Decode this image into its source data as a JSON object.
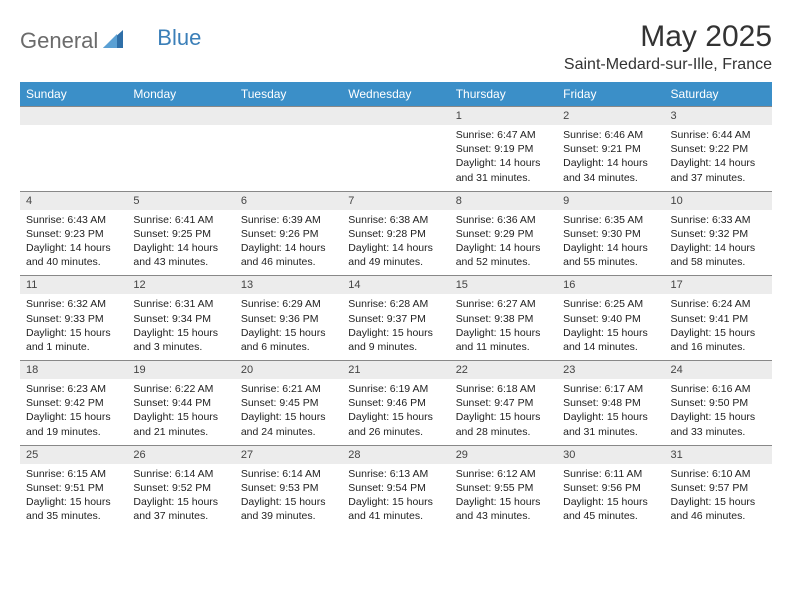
{
  "brand": {
    "part1": "General",
    "part2": "Blue"
  },
  "title": "May 2025",
  "location": "Saint-Medard-sur-Ille, France",
  "colors": {
    "header_bg": "#3b8fc8",
    "daynum_bg": "#ececec",
    "text": "#222222"
  },
  "day_labels": [
    "Sunday",
    "Monday",
    "Tuesday",
    "Wednesday",
    "Thursday",
    "Friday",
    "Saturday"
  ],
  "weeks": [
    [
      null,
      null,
      null,
      null,
      {
        "n": "1",
        "sunrise": "Sunrise: 6:47 AM",
        "sunset": "Sunset: 9:19 PM",
        "daylight": "Daylight: 14 hours and 31 minutes."
      },
      {
        "n": "2",
        "sunrise": "Sunrise: 6:46 AM",
        "sunset": "Sunset: 9:21 PM",
        "daylight": "Daylight: 14 hours and 34 minutes."
      },
      {
        "n": "3",
        "sunrise": "Sunrise: 6:44 AM",
        "sunset": "Sunset: 9:22 PM",
        "daylight": "Daylight: 14 hours and 37 minutes."
      }
    ],
    [
      {
        "n": "4",
        "sunrise": "Sunrise: 6:43 AM",
        "sunset": "Sunset: 9:23 PM",
        "daylight": "Daylight: 14 hours and 40 minutes."
      },
      {
        "n": "5",
        "sunrise": "Sunrise: 6:41 AM",
        "sunset": "Sunset: 9:25 PM",
        "daylight": "Daylight: 14 hours and 43 minutes."
      },
      {
        "n": "6",
        "sunrise": "Sunrise: 6:39 AM",
        "sunset": "Sunset: 9:26 PM",
        "daylight": "Daylight: 14 hours and 46 minutes."
      },
      {
        "n": "7",
        "sunrise": "Sunrise: 6:38 AM",
        "sunset": "Sunset: 9:28 PM",
        "daylight": "Daylight: 14 hours and 49 minutes."
      },
      {
        "n": "8",
        "sunrise": "Sunrise: 6:36 AM",
        "sunset": "Sunset: 9:29 PM",
        "daylight": "Daylight: 14 hours and 52 minutes."
      },
      {
        "n": "9",
        "sunrise": "Sunrise: 6:35 AM",
        "sunset": "Sunset: 9:30 PM",
        "daylight": "Daylight: 14 hours and 55 minutes."
      },
      {
        "n": "10",
        "sunrise": "Sunrise: 6:33 AM",
        "sunset": "Sunset: 9:32 PM",
        "daylight": "Daylight: 14 hours and 58 minutes."
      }
    ],
    [
      {
        "n": "11",
        "sunrise": "Sunrise: 6:32 AM",
        "sunset": "Sunset: 9:33 PM",
        "daylight": "Daylight: 15 hours and 1 minute."
      },
      {
        "n": "12",
        "sunrise": "Sunrise: 6:31 AM",
        "sunset": "Sunset: 9:34 PM",
        "daylight": "Daylight: 15 hours and 3 minutes."
      },
      {
        "n": "13",
        "sunrise": "Sunrise: 6:29 AM",
        "sunset": "Sunset: 9:36 PM",
        "daylight": "Daylight: 15 hours and 6 minutes."
      },
      {
        "n": "14",
        "sunrise": "Sunrise: 6:28 AM",
        "sunset": "Sunset: 9:37 PM",
        "daylight": "Daylight: 15 hours and 9 minutes."
      },
      {
        "n": "15",
        "sunrise": "Sunrise: 6:27 AM",
        "sunset": "Sunset: 9:38 PM",
        "daylight": "Daylight: 15 hours and 11 minutes."
      },
      {
        "n": "16",
        "sunrise": "Sunrise: 6:25 AM",
        "sunset": "Sunset: 9:40 PM",
        "daylight": "Daylight: 15 hours and 14 minutes."
      },
      {
        "n": "17",
        "sunrise": "Sunrise: 6:24 AM",
        "sunset": "Sunset: 9:41 PM",
        "daylight": "Daylight: 15 hours and 16 minutes."
      }
    ],
    [
      {
        "n": "18",
        "sunrise": "Sunrise: 6:23 AM",
        "sunset": "Sunset: 9:42 PM",
        "daylight": "Daylight: 15 hours and 19 minutes."
      },
      {
        "n": "19",
        "sunrise": "Sunrise: 6:22 AM",
        "sunset": "Sunset: 9:44 PM",
        "daylight": "Daylight: 15 hours and 21 minutes."
      },
      {
        "n": "20",
        "sunrise": "Sunrise: 6:21 AM",
        "sunset": "Sunset: 9:45 PM",
        "daylight": "Daylight: 15 hours and 24 minutes."
      },
      {
        "n": "21",
        "sunrise": "Sunrise: 6:19 AM",
        "sunset": "Sunset: 9:46 PM",
        "daylight": "Daylight: 15 hours and 26 minutes."
      },
      {
        "n": "22",
        "sunrise": "Sunrise: 6:18 AM",
        "sunset": "Sunset: 9:47 PM",
        "daylight": "Daylight: 15 hours and 28 minutes."
      },
      {
        "n": "23",
        "sunrise": "Sunrise: 6:17 AM",
        "sunset": "Sunset: 9:48 PM",
        "daylight": "Daylight: 15 hours and 31 minutes."
      },
      {
        "n": "24",
        "sunrise": "Sunrise: 6:16 AM",
        "sunset": "Sunset: 9:50 PM",
        "daylight": "Daylight: 15 hours and 33 minutes."
      }
    ],
    [
      {
        "n": "25",
        "sunrise": "Sunrise: 6:15 AM",
        "sunset": "Sunset: 9:51 PM",
        "daylight": "Daylight: 15 hours and 35 minutes."
      },
      {
        "n": "26",
        "sunrise": "Sunrise: 6:14 AM",
        "sunset": "Sunset: 9:52 PM",
        "daylight": "Daylight: 15 hours and 37 minutes."
      },
      {
        "n": "27",
        "sunrise": "Sunrise: 6:14 AM",
        "sunset": "Sunset: 9:53 PM",
        "daylight": "Daylight: 15 hours and 39 minutes."
      },
      {
        "n": "28",
        "sunrise": "Sunrise: 6:13 AM",
        "sunset": "Sunset: 9:54 PM",
        "daylight": "Daylight: 15 hours and 41 minutes."
      },
      {
        "n": "29",
        "sunrise": "Sunrise: 6:12 AM",
        "sunset": "Sunset: 9:55 PM",
        "daylight": "Daylight: 15 hours and 43 minutes."
      },
      {
        "n": "30",
        "sunrise": "Sunrise: 6:11 AM",
        "sunset": "Sunset: 9:56 PM",
        "daylight": "Daylight: 15 hours and 45 minutes."
      },
      {
        "n": "31",
        "sunrise": "Sunrise: 6:10 AM",
        "sunset": "Sunset: 9:57 PM",
        "daylight": "Daylight: 15 hours and 46 minutes."
      }
    ]
  ]
}
